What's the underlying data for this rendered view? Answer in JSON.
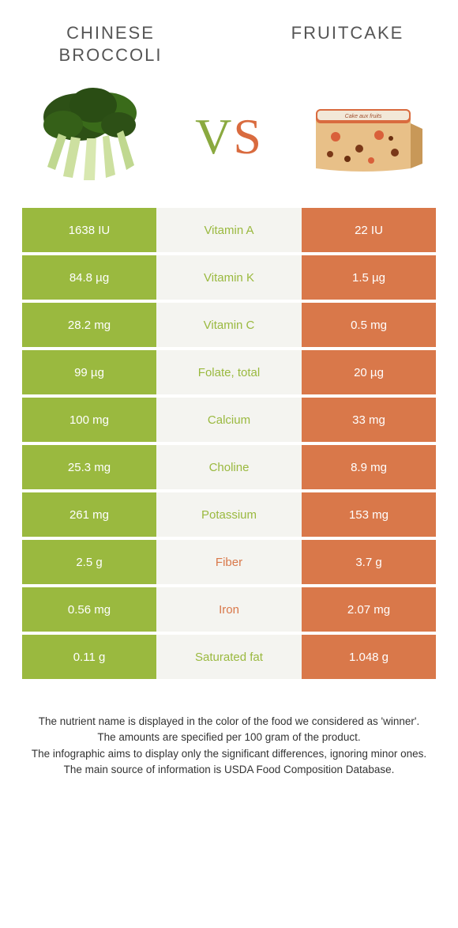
{
  "colors": {
    "green": "#9ab93f",
    "orange": "#d9784a",
    "mid_bg": "#f4f4f0",
    "title_text": "#555555",
    "white": "#ffffff"
  },
  "left_food": {
    "title": "CHINESE BROCCOLI"
  },
  "right_food": {
    "title": "FRUITCAKE"
  },
  "vs": {
    "v": "V",
    "s": "S"
  },
  "rows": [
    {
      "left": "1638 IU",
      "label": "Vitamin A",
      "right": "22 IU",
      "winner": "left"
    },
    {
      "left": "84.8 µg",
      "label": "Vitamin K",
      "right": "1.5 µg",
      "winner": "left"
    },
    {
      "left": "28.2 mg",
      "label": "Vitamin C",
      "right": "0.5 mg",
      "winner": "left"
    },
    {
      "left": "99 µg",
      "label": "Folate, total",
      "right": "20 µg",
      "winner": "left"
    },
    {
      "left": "100 mg",
      "label": "Calcium",
      "right": "33 mg",
      "winner": "left"
    },
    {
      "left": "25.3 mg",
      "label": "Choline",
      "right": "8.9 mg",
      "winner": "left"
    },
    {
      "left": "261 mg",
      "label": "Potassium",
      "right": "153 mg",
      "winner": "left"
    },
    {
      "left": "2.5 g",
      "label": "Fiber",
      "right": "3.7 g",
      "winner": "right"
    },
    {
      "left": "0.56 mg",
      "label": "Iron",
      "right": "2.07 mg",
      "winner": "right"
    },
    {
      "left": "0.11 g",
      "label": "Saturated fat",
      "right": "1.048 g",
      "winner": "left"
    }
  ],
  "footnotes": {
    "l1": "The nutrient name is displayed in the color of the food we considered as 'winner'.",
    "l2": "The amounts are specified per 100 gram of the product.",
    "l3": "The infographic aims to display only the significant differences, ignoring minor ones.",
    "l4": "The main source of information is USDA Food Composition Database."
  }
}
